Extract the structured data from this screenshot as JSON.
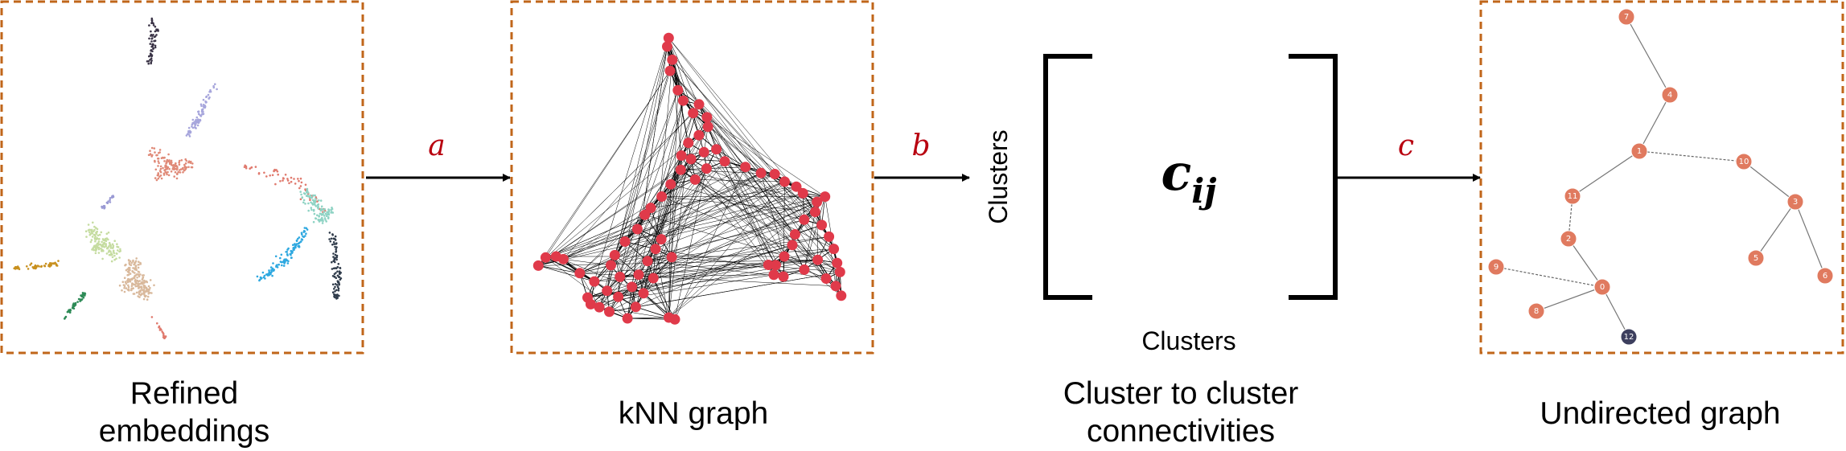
{
  "panels": {
    "embeddings": {
      "caption_line1": "Refined",
      "caption_line2": "embeddings"
    },
    "knn": {
      "caption": "kNN graph"
    },
    "matrix": {
      "caption_line1": "Cluster to cluster",
      "caption_line2": "connectivities",
      "row_label": "Clusters",
      "col_label": "Clusters",
      "symbol_main": "c",
      "symbol_sub": "ij"
    },
    "graph": {
      "caption": "Undirected graph"
    }
  },
  "arrows": {
    "a": "a",
    "b": "b",
    "c": "c"
  },
  "graph_nodes": [
    {
      "id": "7",
      "label": "7",
      "color": "#e07a5f"
    },
    {
      "id": "4",
      "label": "4",
      "color": "#e07a5f"
    },
    {
      "id": "1",
      "label": "1",
      "color": "#e07a5f"
    },
    {
      "id": "10",
      "label": "10",
      "color": "#e07a5f"
    },
    {
      "id": "3",
      "label": "3",
      "color": "#e07a5f"
    },
    {
      "id": "5",
      "label": "5",
      "color": "#e07a5f"
    },
    {
      "id": "6",
      "label": "6",
      "color": "#e07a5f"
    },
    {
      "id": "11",
      "label": "11",
      "color": "#e07a5f"
    },
    {
      "id": "2",
      "label": "2",
      "color": "#e07a5f"
    },
    {
      "id": "9",
      "label": "9",
      "color": "#e07a5f"
    },
    {
      "id": "0",
      "label": "0",
      "color": "#e07a5f"
    },
    {
      "id": "8",
      "label": "8",
      "color": "#e07a5f"
    },
    {
      "id": "12",
      "label": "12",
      "color": "#3d3f5e"
    }
  ],
  "graph_edges": [
    {
      "from": "7",
      "to": "4",
      "style": "solid"
    },
    {
      "from": "4",
      "to": "1",
      "style": "solid"
    },
    {
      "from": "1",
      "to": "10",
      "style": "dashed"
    },
    {
      "from": "10",
      "to": "3",
      "style": "solid"
    },
    {
      "from": "3",
      "to": "5",
      "style": "solid"
    },
    {
      "from": "3",
      "to": "6",
      "style": "solid"
    },
    {
      "from": "1",
      "to": "11",
      "style": "solid"
    },
    {
      "from": "11",
      "to": "2",
      "style": "dashed"
    },
    {
      "from": "2",
      "to": "0",
      "style": "solid"
    },
    {
      "from": "9",
      "to": "0",
      "style": "dashed"
    },
    {
      "from": "0",
      "to": "8",
      "style": "solid"
    },
    {
      "from": "0",
      "to": "12",
      "style": "solid"
    }
  ],
  "colors": {
    "box_border": "#c0661a",
    "arrow_label": "#b8000f",
    "knn_node": "#e03a4a",
    "tree_node": "#e07a5f",
    "root_node": "#3d3f5e"
  }
}
